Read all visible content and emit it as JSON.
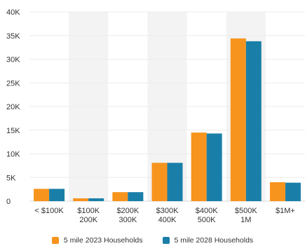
{
  "chart_data": {
    "type": "bar",
    "categories": [
      [
        "< $100K"
      ],
      [
        "$100K",
        "200K"
      ],
      [
        "$200K",
        "300K"
      ],
      [
        "$300K",
        "400K"
      ],
      [
        "$400K",
        "500K"
      ],
      [
        "$500K",
        "1M"
      ],
      [
        "$1M+"
      ]
    ],
    "series": [
      {
        "name": "5 mile 2023 Households",
        "color": "#f7941d",
        "values": [
          2600,
          600,
          1900,
          8100,
          14500,
          34400,
          4000
        ]
      },
      {
        "name": "5 mile 2028 Households",
        "color": "#1a7fa8",
        "values": [
          2600,
          600,
          1900,
          8100,
          14300,
          33800,
          3900
        ]
      }
    ],
    "title": "",
    "xlabel": "",
    "ylabel": "",
    "ylim": [
      0,
      40000
    ],
    "yticks": [
      {
        "value": 0,
        "label": "0"
      },
      {
        "value": 5000,
        "label": "5K"
      },
      {
        "value": 10000,
        "label": "10K"
      },
      {
        "value": 15000,
        "label": "15K"
      },
      {
        "value": 20000,
        "label": "20K"
      },
      {
        "value": 25000,
        "label": "25K"
      },
      {
        "value": 30000,
        "label": "30K"
      },
      {
        "value": 35000,
        "label": "35K"
      },
      {
        "value": 40000,
        "label": "40K"
      }
    ],
    "grid": true,
    "alternating_category_bands": true,
    "band_color": "#f3f3f3",
    "legend_position": "bottom"
  }
}
